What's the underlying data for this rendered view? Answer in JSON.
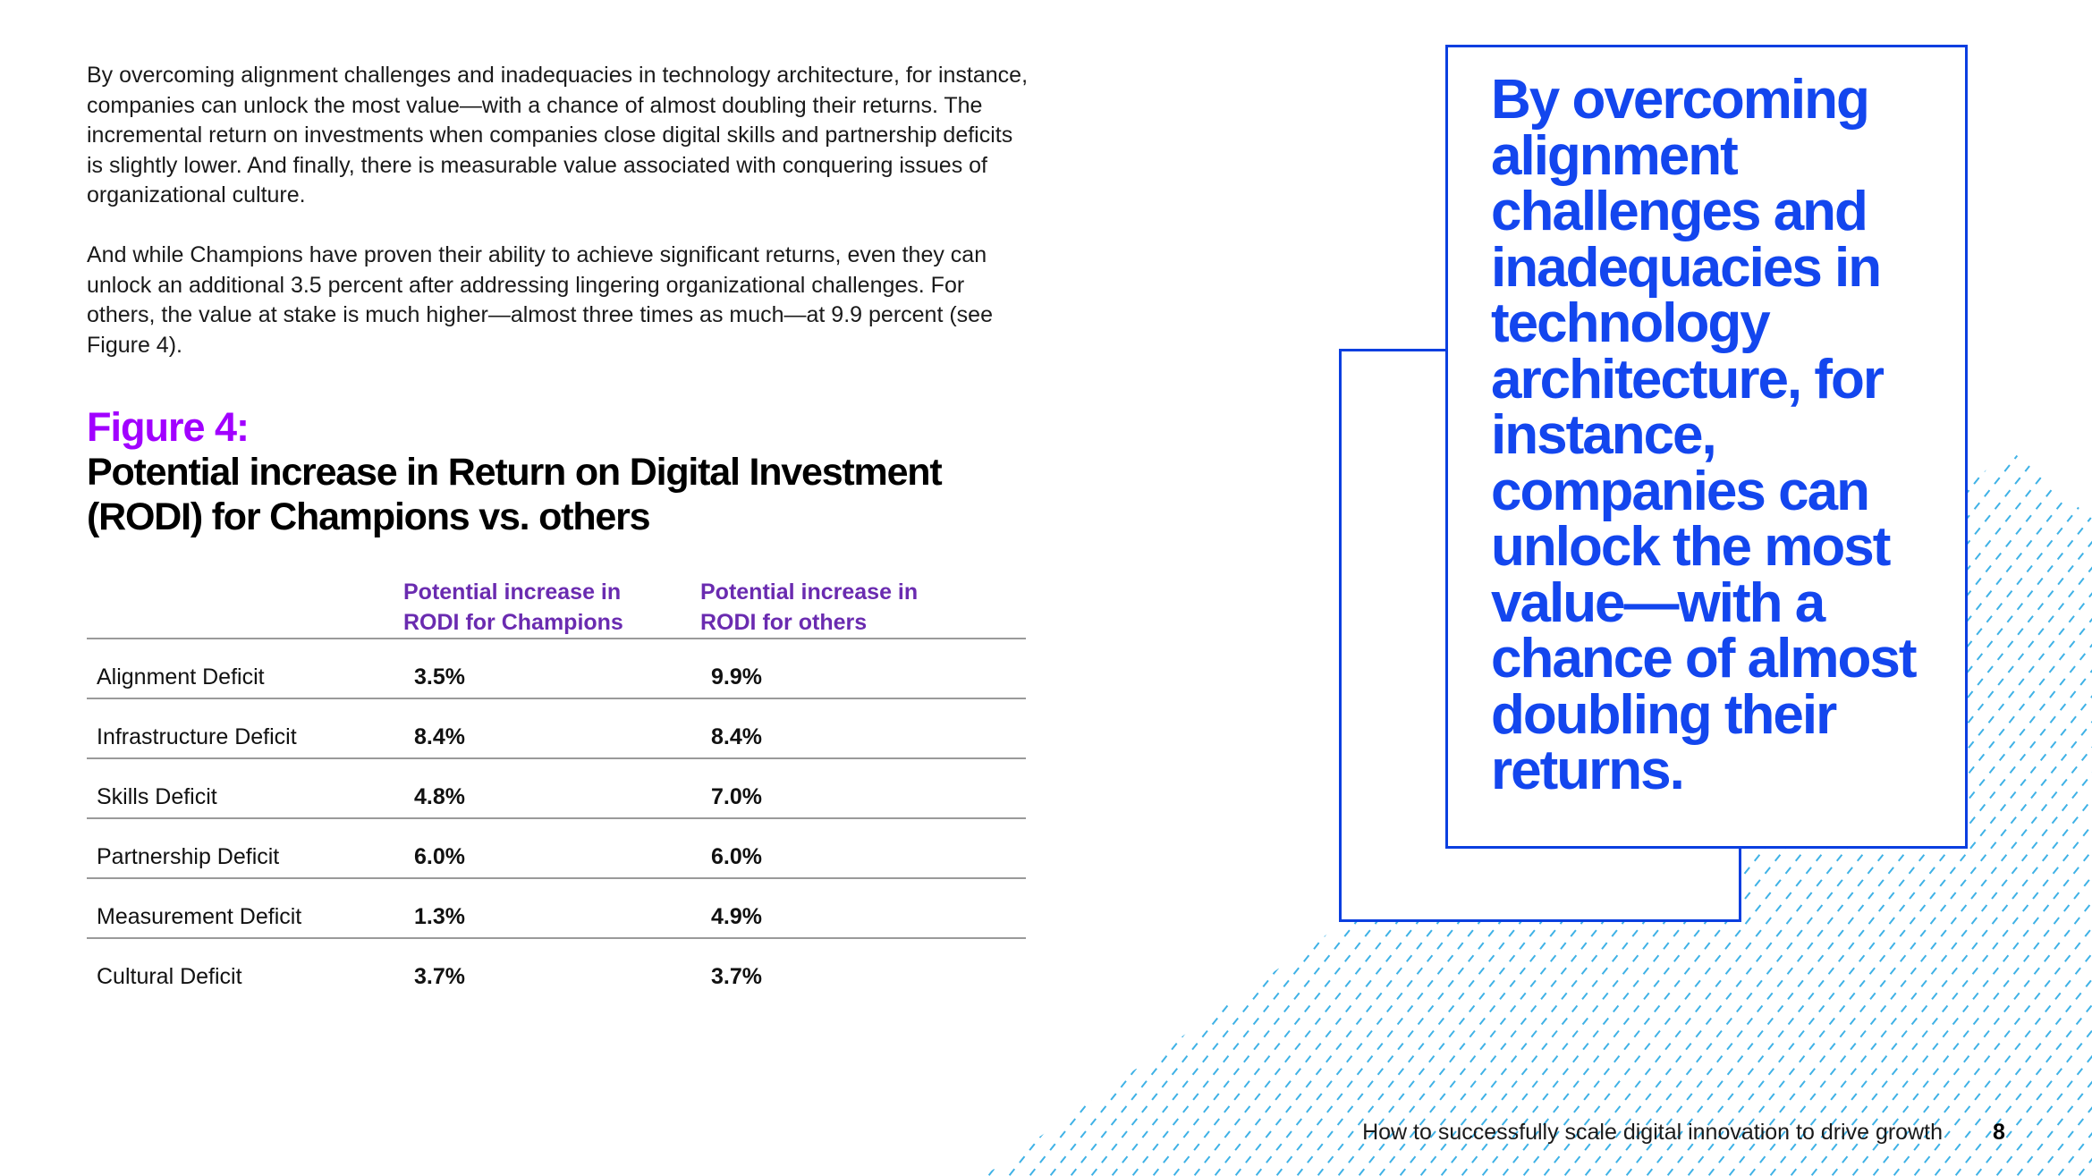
{
  "body": {
    "paragraph_1": "By overcoming alignment challenges and inadequacies in technology architecture, for instance, companies can unlock the most value—with a chance of almost doubling their returns. The incremental return on investments when companies close digital skills and partnership deficits is slightly lower. And finally, there is measurable value associated with conquering issues of organizational culture.",
    "paragraph_2": "And while Champions have proven their ability to achieve significant returns, even they can unlock an additional 3.5 percent after addressing lingering organizational challenges. For others, the value at stake is much higher—almost three times as much—at 9.9 percent (see Figure 4)."
  },
  "figure": {
    "label": "Figure 4:",
    "title": "Potential increase in Return on Digital Investment (RODI) for Champions vs. others",
    "columns": [
      "Potential increase in RODI for Champions",
      "Potential increase in RODI for others"
    ],
    "rows": [
      {
        "label": "Alignment Deficit",
        "champions": "3.5%",
        "others": "9.9%"
      },
      {
        "label": "Infrastructure Deficit",
        "champions": "8.4%",
        "others": "8.4%"
      },
      {
        "label": "Skills Deficit",
        "champions": "4.8%",
        "others": "7.0%"
      },
      {
        "label": "Partnership Deficit",
        "champions": "6.0%",
        "others": "6.0%"
      },
      {
        "label": "Measurement Deficit",
        "champions": "1.3%",
        "others": "4.9%"
      },
      {
        "label": "Cultural Deficit",
        "champions": "3.7%",
        "others": "3.7%"
      }
    ]
  },
  "pull_quote": {
    "text": "By overcoming alignment challenges and inadequacies in technology architecture, for instance, companies can unlock the most value—with a chance of almost doubling their returns."
  },
  "footer": {
    "text": "How to successfully scale digital innovation to drive growth",
    "page_number": "8"
  },
  "colors": {
    "accent_purple": "#a100ff",
    "header_purple": "#6a2bb0",
    "quote_blue": "#1346ee",
    "box_blue": "#0b3fe0",
    "hatch_cyan": "#3fb2e6"
  }
}
